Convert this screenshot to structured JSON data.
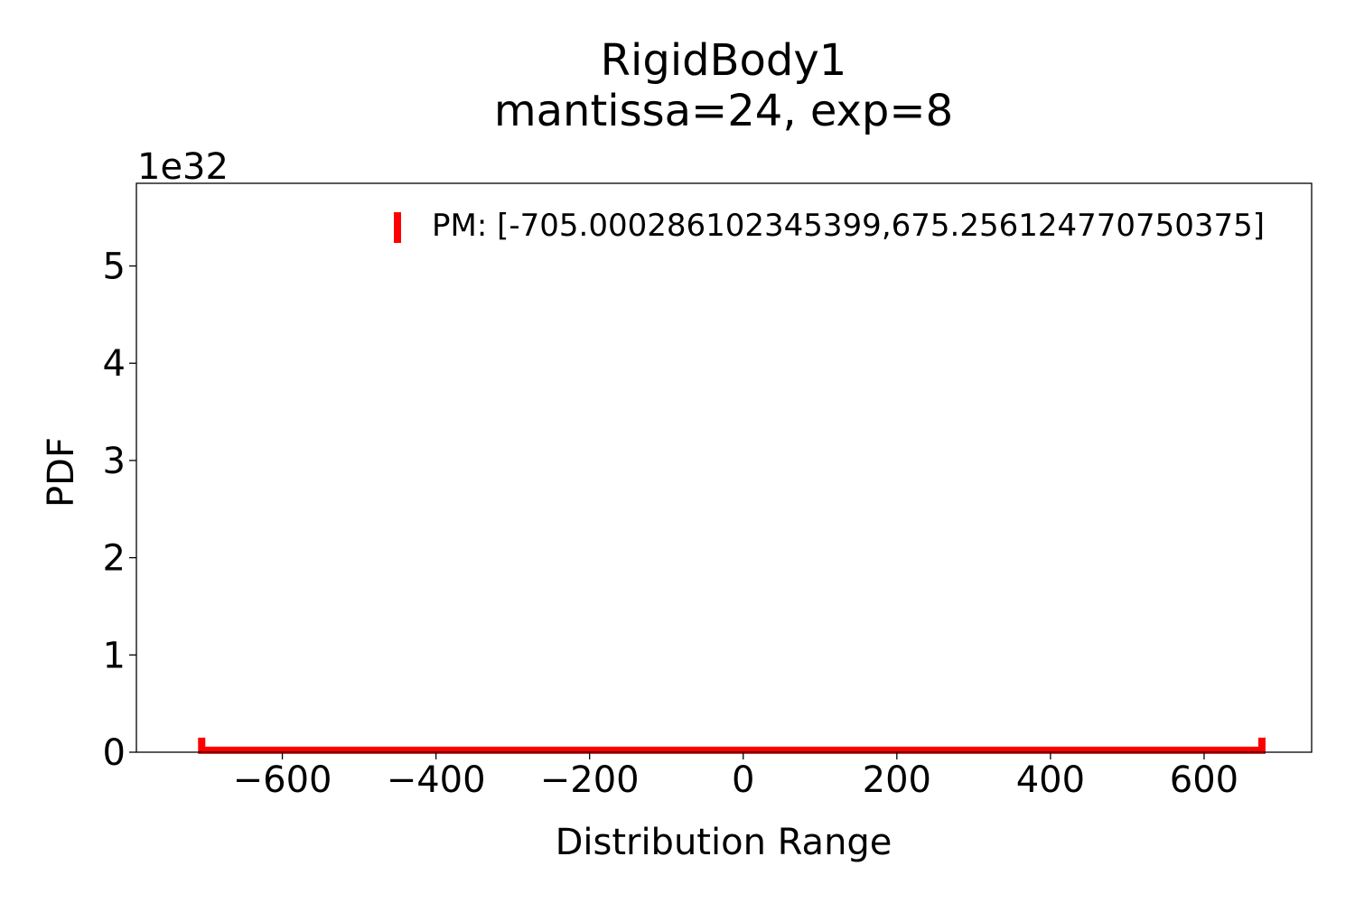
{
  "chart_data": {
    "type": "line",
    "title_line1": "RigidBody1",
    "title_line2": "mantissa=24, exp=8",
    "xlabel": "Distribution Range",
    "ylabel": "PDF",
    "y_offset_label": "1e32",
    "xlim": [
      -790,
      740
    ],
    "ylim": [
      0,
      5.85
    ],
    "x_ticks": [
      -600,
      -400,
      -200,
      0,
      200,
      400,
      600
    ],
    "x_tick_labels": [
      "−600",
      "−400",
      "∀",
      "0",
      "200",
      "400",
      "600"
    ],
    "y_ticks": [
      0,
      1,
      2,
      3,
      4,
      5
    ],
    "y_tick_labels": [
      "0",
      "1",
      "2",
      "3",
      "4",
      "5"
    ],
    "series": [
      {
        "name": "PM: [-705.000286102345399,675.256124770750375]",
        "color": "#ff0000",
        "x": [
          -705.0002861023454,
          -705.0002861023454,
          675.2561247707504,
          675.2561247707504
        ],
        "y": [
          0.15,
          0.02,
          0.02,
          0.15
        ]
      }
    ],
    "legend_position": "top-right",
    "grid": false
  }
}
